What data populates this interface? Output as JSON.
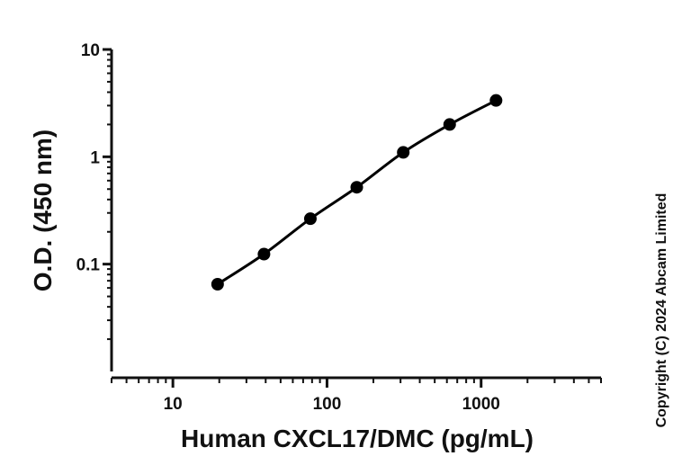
{
  "chart_data": {
    "type": "scatter",
    "xlabel": "Human CXCL17/DMC (pg/mL)",
    "ylabel": "O.D. (450 nm)",
    "x_scale": "log",
    "y_scale": "log",
    "xlim": [
      4,
      6000
    ],
    "ylim": [
      0.01,
      10
    ],
    "x_ticks": [
      10,
      100,
      1000
    ],
    "x_tick_labels": [
      "10",
      "100",
      "1000"
    ],
    "y_ticks": [
      0.1,
      1,
      10
    ],
    "y_tick_labels": [
      "0.1",
      "1",
      "10"
    ],
    "grid": false,
    "series": [
      {
        "x": [
          19.5,
          39,
          78,
          156,
          312.5,
          625,
          1250
        ],
        "y": [
          0.065,
          0.124,
          0.265,
          0.52,
          1.1,
          2.0,
          3.35
        ],
        "marker": "circle",
        "fit_line": true,
        "color": "#000000"
      }
    ]
  },
  "copyright": "Copyright (C) 2024 Abcam Limited"
}
